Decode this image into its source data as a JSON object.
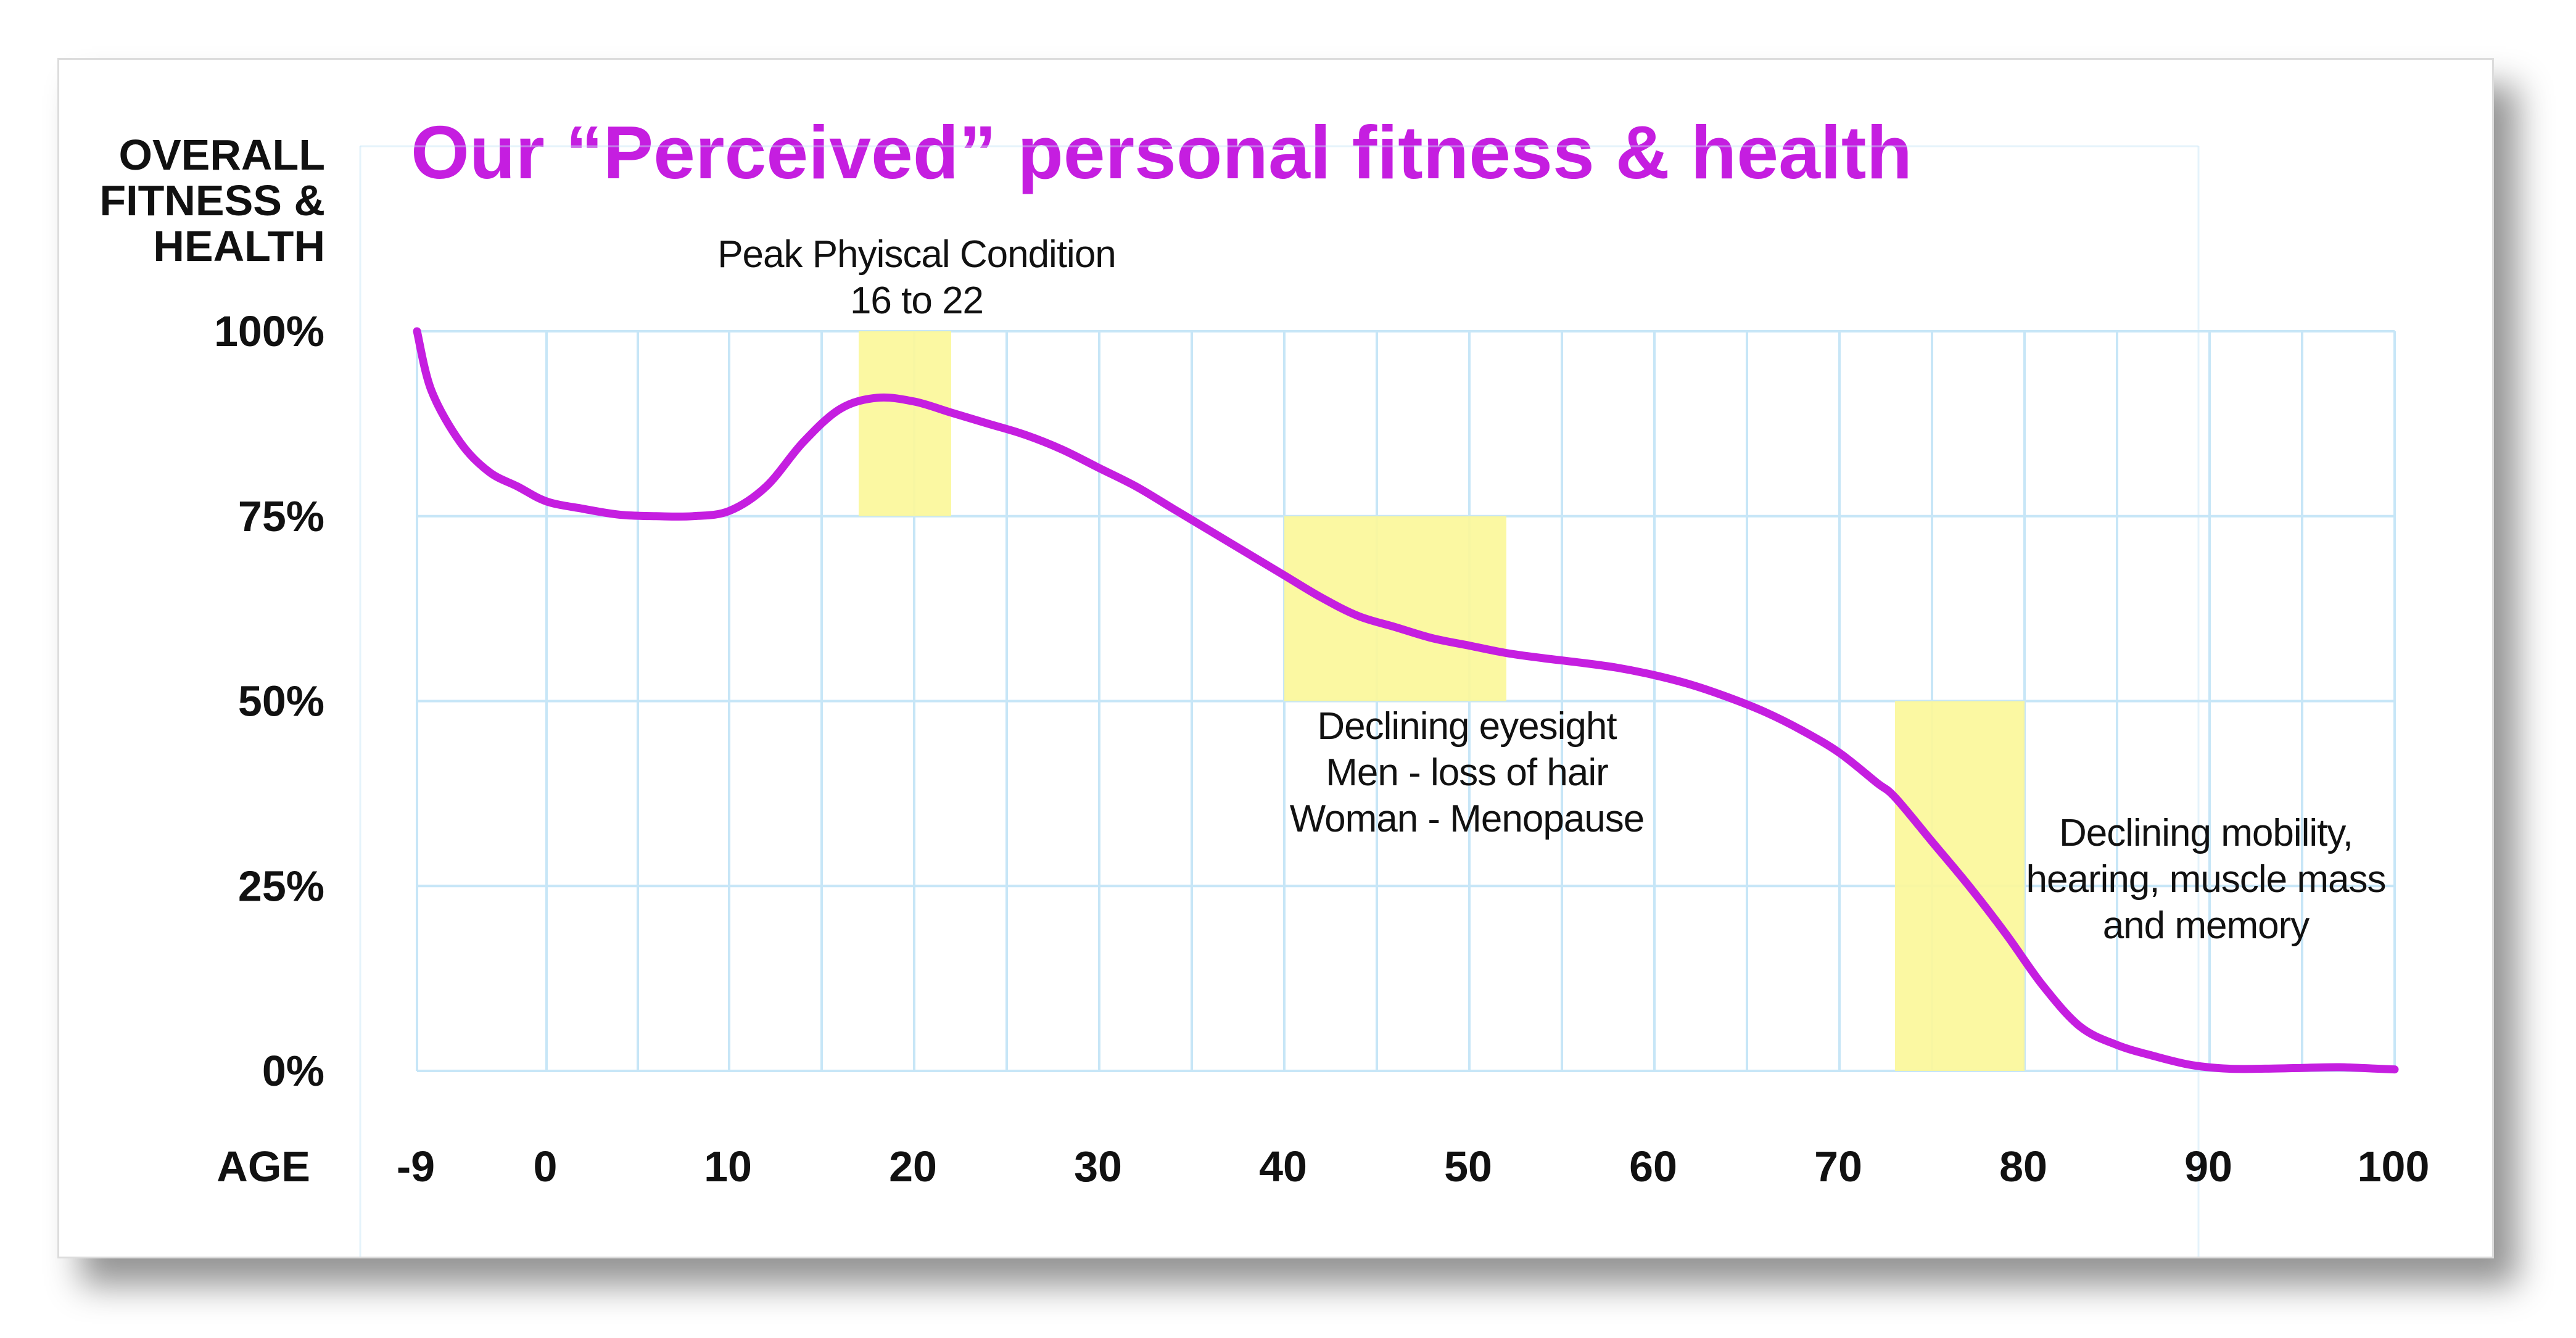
{
  "colors": {
    "title": "#c51ee0",
    "curve": "#c51ee0",
    "highlight": "#fbf79a",
    "grid": "#c7e6f7",
    "text": "#111111"
  },
  "chart_data": {
    "type": "line",
    "title": "Our “Perceived” personal fitness & health",
    "ylabel_lines": [
      "OVERALL",
      "FITNESS &",
      "HEALTH"
    ],
    "xlabel": "AGE",
    "x_ticks": [
      -9,
      0,
      10,
      20,
      30,
      40,
      50,
      60,
      70,
      80,
      90,
      100
    ],
    "x_tick_labels": [
      "-9",
      "0",
      "10",
      "20",
      "30",
      "40",
      "50",
      "60",
      "70",
      "80",
      "90",
      "100"
    ],
    "y_ticks": [
      0,
      25,
      50,
      75,
      100
    ],
    "y_tick_labels": [
      "0%",
      "25%",
      "50%",
      "75%",
      "100%"
    ],
    "xlim": [
      -9,
      100
    ],
    "ylim": [
      0,
      100
    ],
    "grid": true,
    "series": [
      {
        "x": [
          -9,
          -8,
          -6,
          -4,
          -2,
          0,
          2,
          4,
          6,
          8,
          10,
          12,
          14,
          16,
          18,
          20,
          22,
          24,
          26,
          28,
          30,
          32,
          34,
          36,
          38,
          40,
          42,
          44,
          46,
          48,
          50,
          52,
          54,
          56,
          58,
          60,
          62,
          64,
          66,
          68,
          70,
          72,
          73,
          75,
          77,
          79,
          81,
          83,
          85,
          87,
          89,
          91,
          93,
          95,
          97,
          99,
          100
        ],
        "y": [
          100,
          92,
          85,
          81,
          79,
          77,
          76,
          75.2,
          75,
          75,
          75.7,
          79,
          85,
          89.5,
          91,
          90.5,
          89,
          87.5,
          86,
          84,
          81.5,
          79,
          76,
          73,
          70,
          67,
          64,
          61.5,
          60,
          58.5,
          57.5,
          56.5,
          55.8,
          55.2,
          54.5,
          53.5,
          52.2,
          50.5,
          48.5,
          46,
          43,
          39,
          37,
          31,
          25,
          18.5,
          11.5,
          6,
          3.5,
          2,
          0.8,
          0.3,
          0.3,
          0.4,
          0.5,
          0.3,
          0.2
        ]
      }
    ],
    "highlights": [
      {
        "x0": 17,
        "x1": 22,
        "y0": 75,
        "y1": 100
      },
      {
        "x0": 40,
        "x1": 52,
        "y0": 50,
        "y1": 75
      },
      {
        "x0": 73,
        "x1": 80,
        "y0": 0,
        "y1": 50
      }
    ],
    "annotations": [
      {
        "lines": [
          "Peak Phyiscal Condition",
          "16 to 22"
        ]
      },
      {
        "lines": [
          "Declining eyesight",
          "Men - loss of hair",
          "Woman - Menopause"
        ]
      },
      {
        "lines": [
          "Declining mobility,",
          "hearing, muscle mass",
          "and memory"
        ]
      }
    ]
  }
}
